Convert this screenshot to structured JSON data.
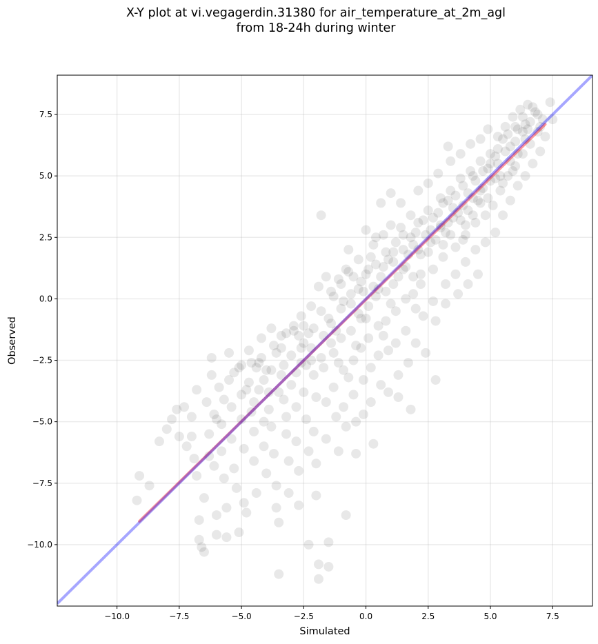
{
  "title_lines": [
    "X-Y plot at vi.vegagerdin.31380 for air_temperature_at_2m_agl",
    "from 18-24h during winter"
  ],
  "chart_data": {
    "type": "scatter",
    "title": "X-Y plot at vi.vegagerdin.31380 for air_temperature_at_2m_agl from 18-24h during winter",
    "xlabel": "Simulated",
    "ylabel": "Observed",
    "xlim": [
      -12.4,
      9.1
    ],
    "ylim": [
      -12.5,
      9.1
    ],
    "xticks": [
      -10.0,
      -7.5,
      -5.0,
      -2.5,
      0.0,
      2.5,
      5.0,
      7.5
    ],
    "yticks": [
      -10.0,
      -7.5,
      -5.0,
      -2.5,
      0.0,
      2.5,
      5.0,
      7.5
    ],
    "xtick_labels": [
      "−10.0",
      "−7.5",
      "−5.0",
      "−2.5",
      "0.0",
      "2.5",
      "5.0",
      "7.5"
    ],
    "ytick_labels": [
      "−10.0",
      "−7.5",
      "−5.0",
      "−2.5",
      "0.0",
      "2.5",
      "5.0",
      "7.5"
    ],
    "grid": true,
    "point_color": "#000000",
    "point_alpha": 0.09,
    "identity_line": {
      "x": [
        -12.4,
        9.1
      ],
      "y": [
        -12.4,
        9.1
      ],
      "color": "#0000ff",
      "alpha": 0.35
    },
    "fit_line": {
      "x": [
        -9.1,
        7.2
      ],
      "y": [
        -9.05,
        7.1
      ],
      "color": "#ff0000",
      "alpha": 0.4
    },
    "points": [
      [
        -9.1,
        -7.2
      ],
      [
        -9.2,
        -8.2
      ],
      [
        -8.7,
        -7.6
      ],
      [
        -8.3,
        -5.8
      ],
      [
        -8.0,
        -5.3
      ],
      [
        -7.8,
        -4.9
      ],
      [
        -7.6,
        -4.5
      ],
      [
        -7.5,
        -5.6
      ],
      [
        -7.3,
        -4.4
      ],
      [
        -7.2,
        -6.0
      ],
      [
        -7.0,
        -4.8
      ],
      [
        -7.0,
        -5.6
      ],
      [
        -6.9,
        -6.5
      ],
      [
        -6.8,
        -3.7
      ],
      [
        -6.8,
        -7.2
      ],
      [
        -6.7,
        -9.0
      ],
      [
        -6.7,
        -9.8
      ],
      [
        -6.6,
        -10.1
      ],
      [
        -6.5,
        -10.3
      ],
      [
        -6.5,
        -8.1
      ],
      [
        -6.4,
        -4.2
      ],
      [
        -6.3,
        -5.5
      ],
      [
        -6.3,
        -6.4
      ],
      [
        -6.2,
        -2.4
      ],
      [
        -6.2,
        -3.1
      ],
      [
        -6.1,
        -4.7
      ],
      [
        -6.1,
        -6.8
      ],
      [
        -6.0,
        -8.8
      ],
      [
        -6.0,
        -9.6
      ],
      [
        -5.9,
        -3.6
      ],
      [
        -5.8,
        -5.1
      ],
      [
        -5.8,
        -6.2
      ],
      [
        -5.7,
        -7.3
      ],
      [
        -5.6,
        -8.5
      ],
      [
        -5.6,
        -9.7
      ],
      [
        -5.5,
        -2.2
      ],
      [
        -5.5,
        -3.3
      ],
      [
        -5.4,
        -4.4
      ],
      [
        -5.4,
        -5.7
      ],
      [
        -5.3,
        -6.9
      ],
      [
        -5.2,
        -7.7
      ],
      [
        -5.1,
        -9.5
      ],
      [
        -5.1,
        -2.8
      ],
      [
        -5.0,
        -3.9
      ],
      [
        -5.0,
        -4.9
      ],
      [
        -4.9,
        -6.1
      ],
      [
        -4.9,
        -8.3
      ],
      [
        -4.8,
        -8.7
      ],
      [
        -4.7,
        -2.1
      ],
      [
        -4.7,
        -3.4
      ],
      [
        -4.6,
        -4.6
      ],
      [
        -4.5,
        -5.4
      ],
      [
        -4.5,
        -6.6
      ],
      [
        -4.4,
        -7.9
      ],
      [
        -4.3,
        -2.6
      ],
      [
        -4.3,
        -3.7
      ],
      [
        -4.2,
        -1.6
      ],
      [
        -4.1,
        -5.0
      ],
      [
        -4.1,
        -6.0
      ],
      [
        -4.0,
        -7.1
      ],
      [
        -4.0,
        -2.9
      ],
      [
        -3.9,
        -3.8
      ],
      [
        -3.8,
        -1.2
      ],
      [
        -3.8,
        -5.2
      ],
      [
        -3.7,
        -6.3
      ],
      [
        -3.6,
        -7.6
      ],
      [
        -3.6,
        -8.5
      ],
      [
        -3.5,
        -9.1
      ],
      [
        -3.5,
        -11.2
      ],
      [
        -3.4,
        -2.0
      ],
      [
        -3.4,
        -3.1
      ],
      [
        -3.3,
        -4.1
      ],
      [
        -3.2,
        -1.4
      ],
      [
        -3.2,
        -5.5
      ],
      [
        -3.1,
        -6.6
      ],
      [
        -3.1,
        -7.9
      ],
      [
        -3.0,
        -2.3
      ],
      [
        -3.0,
        -3.5
      ],
      [
        -2.9,
        -1.1
      ],
      [
        -2.8,
        -4.4
      ],
      [
        -2.8,
        -5.8
      ],
      [
        -2.7,
        -7.0
      ],
      [
        -2.7,
        -8.4
      ],
      [
        -2.6,
        -0.7
      ],
      [
        -2.6,
        -2.6
      ],
      [
        -2.5,
        -1.8
      ],
      [
        -2.5,
        -3.8
      ],
      [
        -2.4,
        -4.9
      ],
      [
        -2.3,
        -6.2
      ],
      [
        -2.3,
        -10.0
      ],
      [
        -2.2,
        -0.3
      ],
      [
        -2.2,
        -2.0
      ],
      [
        -2.1,
        -3.1
      ],
      [
        -2.1,
        -5.4
      ],
      [
        -2.0,
        -6.7
      ],
      [
        -2.0,
        -8.0
      ],
      [
        -1.9,
        -10.8
      ],
      [
        -1.9,
        -11.4
      ],
      [
        -1.8,
        3.4
      ],
      [
        -1.8,
        -0.5
      ],
      [
        -1.7,
        -1.5
      ],
      [
        -1.7,
        -2.8
      ],
      [
        -1.6,
        -4.2
      ],
      [
        -1.6,
        -5.7
      ],
      [
        -1.5,
        -9.9
      ],
      [
        -1.5,
        -10.9
      ],
      [
        -1.4,
        0.3
      ],
      [
        -1.4,
        -1.0
      ],
      [
        -1.3,
        -2.2
      ],
      [
        -1.3,
        -3.6
      ],
      [
        -1.2,
        -4.8
      ],
      [
        -1.1,
        -6.2
      ],
      [
        -1.1,
        0.8
      ],
      [
        -1.0,
        -0.4
      ],
      [
        -1.0,
        -1.6
      ],
      [
        -0.9,
        -2.9
      ],
      [
        -0.9,
        -4.4
      ],
      [
        -0.8,
        -5.2
      ],
      [
        -0.8,
        -8.8
      ],
      [
        -0.7,
        2.0
      ],
      [
        -0.7,
        1.1
      ],
      [
        -0.6,
        -0.2
      ],
      [
        -0.6,
        -1.3
      ],
      [
        -0.5,
        -2.5
      ],
      [
        -0.5,
        -3.9
      ],
      [
        -0.4,
        -5.0
      ],
      [
        -0.4,
        -6.3
      ],
      [
        -0.3,
        1.6
      ],
      [
        -0.3,
        0.4
      ],
      [
        -0.2,
        -0.8
      ],
      [
        -0.2,
        -2.0
      ],
      [
        -0.1,
        -3.3
      ],
      [
        -0.1,
        -4.7
      ],
      [
        0.0,
        2.8
      ],
      [
        0.0,
        1.0
      ],
      [
        0.1,
        -0.3
      ],
      [
        0.1,
        -1.6
      ],
      [
        0.2,
        -2.8
      ],
      [
        0.2,
        -4.2
      ],
      [
        0.3,
        -5.9
      ],
      [
        0.3,
        2.2
      ],
      [
        0.4,
        1.4
      ],
      [
        0.4,
        0.1
      ],
      [
        0.5,
        -1.1
      ],
      [
        0.5,
        -2.3
      ],
      [
        0.6,
        -3.5
      ],
      [
        0.6,
        3.9
      ],
      [
        0.7,
        2.6
      ],
      [
        0.7,
        1.3
      ],
      [
        0.8,
        0.3
      ],
      [
        0.8,
        -0.9
      ],
      [
        0.9,
        -2.1
      ],
      [
        0.9,
        -3.8
      ],
      [
        1.0,
        4.3
      ],
      [
        1.0,
        3.0
      ],
      [
        1.1,
        1.9
      ],
      [
        1.1,
        0.6
      ],
      [
        1.2,
        -0.5
      ],
      [
        1.2,
        -1.8
      ],
      [
        1.3,
        -3.1
      ],
      [
        1.3,
        -4.0
      ],
      [
        1.4,
        3.9
      ],
      [
        1.5,
        2.6
      ],
      [
        1.5,
        1.2
      ],
      [
        1.6,
        0.0
      ],
      [
        1.6,
        -1.3
      ],
      [
        1.7,
        -2.6
      ],
      [
        1.8,
        -4.5
      ],
      [
        1.8,
        3.4
      ],
      [
        1.9,
        2.2
      ],
      [
        1.9,
        0.9
      ],
      [
        2.0,
        -0.4
      ],
      [
        2.0,
        -1.8
      ],
      [
        2.1,
        4.4
      ],
      [
        2.1,
        3.1
      ],
      [
        2.2,
        1.8
      ],
      [
        2.2,
        0.6
      ],
      [
        2.3,
        -0.7
      ],
      [
        2.4,
        -2.2
      ],
      [
        2.5,
        4.7
      ],
      [
        2.5,
        3.6
      ],
      [
        2.6,
        2.3
      ],
      [
        2.7,
        1.2
      ],
      [
        2.7,
        -0.1
      ],
      [
        2.8,
        -0.9
      ],
      [
        2.8,
        -3.3
      ],
      [
        2.9,
        5.1
      ],
      [
        3.0,
        4.1
      ],
      [
        3.0,
        2.9
      ],
      [
        3.1,
        1.7
      ],
      [
        3.2,
        0.6
      ],
      [
        3.2,
        -0.2
      ],
      [
        3.3,
        6.2
      ],
      [
        3.4,
        5.6
      ],
      [
        3.4,
        4.4
      ],
      [
        3.5,
        3.3
      ],
      [
        3.6,
        2.1
      ],
      [
        3.6,
        1.0
      ],
      [
        3.7,
        0.2
      ],
      [
        3.8,
        5.9
      ],
      [
        3.8,
        4.9
      ],
      [
        3.9,
        3.8
      ],
      [
        4.0,
        2.6
      ],
      [
        4.0,
        1.5
      ],
      [
        4.1,
        0.6
      ],
      [
        4.2,
        6.3
      ],
      [
        4.2,
        5.2
      ],
      [
        4.3,
        4.1
      ],
      [
        4.4,
        3.1
      ],
      [
        4.4,
        2.0
      ],
      [
        4.5,
        1.0
      ],
      [
        4.6,
        6.5
      ],
      [
        4.6,
        5.6
      ],
      [
        4.7,
        4.5
      ],
      [
        4.8,
        3.4
      ],
      [
        4.8,
        2.3
      ],
      [
        4.9,
        6.9
      ],
      [
        5.0,
        5.9
      ],
      [
        5.0,
        4.8
      ],
      [
        5.1,
        3.8
      ],
      [
        5.2,
        2.7
      ],
      [
        5.3,
        6.6
      ],
      [
        5.3,
        5.5
      ],
      [
        5.4,
        4.4
      ],
      [
        5.5,
        3.4
      ],
      [
        5.6,
        7.0
      ],
      [
        5.6,
        6.0
      ],
      [
        5.7,
        5.0
      ],
      [
        5.8,
        4.0
      ],
      [
        5.9,
        7.4
      ],
      [
        6.0,
        6.4
      ],
      [
        6.0,
        5.4
      ],
      [
        6.1,
        4.6
      ],
      [
        6.2,
        7.7
      ],
      [
        6.3,
        6.8
      ],
      [
        6.3,
        5.9
      ],
      [
        6.4,
        5.0
      ],
      [
        6.5,
        7.9
      ],
      [
        6.6,
        7.2
      ],
      [
        6.6,
        6.3
      ],
      [
        6.7,
        5.5
      ],
      [
        6.8,
        7.6
      ],
      [
        6.9,
        6.8
      ],
      [
        7.0,
        6.0
      ],
      [
        7.1,
        7.3
      ],
      [
        7.2,
        6.6
      ],
      [
        7.4,
        8.0
      ],
      [
        7.5,
        7.3
      ],
      [
        -2.9,
        -1.3
      ],
      [
        -2.7,
        -1.5
      ],
      [
        -2.5,
        -1.1
      ],
      [
        -2.3,
        -1.4
      ],
      [
        -2.1,
        -1.2
      ],
      [
        -4.6,
        -2.6
      ],
      [
        -4.4,
        -2.8
      ],
      [
        -4.2,
        -2.4
      ],
      [
        -3.7,
        -1.9
      ],
      [
        -3.4,
        -1.5
      ],
      [
        -1.9,
        0.5
      ],
      [
        -1.6,
        0.9
      ],
      [
        -1.3,
        0.1
      ],
      [
        -1.0,
        0.6
      ],
      [
        -0.8,
        1.2
      ],
      [
        -0.5,
        0.9
      ],
      [
        -0.3,
        -0.6
      ],
      [
        -0.1,
        0.3
      ],
      [
        0.2,
        1.7
      ],
      [
        0.4,
        2.5
      ],
      [
        0.6,
        0.9
      ],
      [
        0.9,
        1.6
      ],
      [
        1.2,
        2.3
      ],
      [
        1.4,
        2.9
      ],
      [
        1.7,
        1.8
      ],
      [
        2.0,
        2.7
      ],
      [
        2.3,
        3.2
      ],
      [
        2.6,
        2.8
      ],
      [
        2.9,
        3.5
      ],
      [
        3.1,
        3.9
      ],
      [
        3.3,
        3.1
      ],
      [
        3.6,
        4.2
      ],
      [
        3.9,
        4.6
      ],
      [
        4.1,
        3.6
      ],
      [
        4.3,
        5.0
      ],
      [
        4.6,
        4.4
      ],
      [
        4.9,
        5.3
      ],
      [
        5.2,
        5.8
      ],
      [
        5.5,
        6.5
      ],
      [
        5.8,
        6.2
      ],
      [
        6.1,
        6.9
      ],
      [
        6.4,
        7.1
      ],
      [
        -6.0,
        -4.9
      ],
      [
        -5.7,
        -4.1
      ],
      [
        -5.3,
        -3.0
      ],
      [
        -5.0,
        -2.7
      ],
      [
        -4.8,
        -3.7
      ],
      [
        -4.5,
        -4.2
      ],
      [
        -4.1,
        -3.3
      ],
      [
        -3.9,
        -4.5
      ],
      [
        -3.5,
        -3.8
      ],
      [
        -3.2,
        -4.8
      ],
      [
        -2.8,
        -3.0
      ],
      [
        -2.4,
        -2.7
      ],
      [
        -2.0,
        -4.0
      ],
      [
        -1.8,
        -2.4
      ],
      [
        -1.4,
        -1.8
      ],
      [
        -1.1,
        -2.6
      ],
      [
        -0.7,
        -3.2
      ],
      [
        -0.4,
        -1.9
      ],
      [
        0.0,
        -0.8
      ],
      [
        0.3,
        0.5
      ],
      [
        0.7,
        -1.5
      ],
      [
        1.0,
        -0.2
      ],
      [
        1.3,
        0.9
      ],
      [
        1.6,
        1.3
      ],
      [
        1.9,
        0.2
      ],
      [
        2.2,
        1.0
      ],
      [
        2.5,
        1.9
      ],
      [
        2.8,
        2.4
      ],
      [
        3.1,
        2.2
      ],
      [
        3.4,
        2.6
      ],
      [
        3.7,
        3.5
      ],
      [
        4.0,
        3.0
      ],
      [
        4.3,
        3.4
      ],
      [
        4.6,
        3.9
      ],
      [
        4.9,
        4.1
      ],
      [
        5.2,
        4.9
      ],
      [
        5.5,
        4.7
      ],
      [
        5.8,
        5.6
      ],
      [
        6.1,
        5.9
      ],
      [
        6.4,
        6.5
      ],
      [
        -3.8,
        -2.9
      ],
      [
        -3.6,
        -2.2
      ],
      [
        -3.3,
        -2.7
      ],
      [
        -2.6,
        -2.0
      ],
      [
        -2.2,
        -2.5
      ],
      [
        -1.5,
        -0.8
      ],
      [
        -1.2,
        -1.3
      ],
      [
        -0.9,
        -0.1
      ],
      [
        -0.6,
        0.2
      ],
      [
        -0.2,
        0.7
      ],
      [
        0.1,
        1.2
      ],
      [
        0.5,
        0.4
      ],
      [
        0.8,
        1.9
      ],
      [
        1.1,
        1.5
      ],
      [
        1.5,
        2.0
      ],
      [
        1.8,
        2.5
      ],
      [
        2.1,
        2.0
      ],
      [
        2.4,
        2.6
      ],
      [
        2.7,
        3.3
      ],
      [
        3.0,
        3.0
      ],
      [
        3.3,
        4.0
      ],
      [
        3.5,
        3.7
      ],
      [
        3.8,
        3.2
      ],
      [
        4.1,
        4.3
      ],
      [
        4.4,
        4.8
      ],
      [
        4.7,
        5.2
      ],
      [
        5.0,
        5.5
      ],
      [
        5.3,
        6.1
      ],
      [
        5.7,
        6.7
      ],
      [
        6.0,
        7.0
      ],
      [
        6.3,
        7.4
      ],
      [
        6.7,
        7.8
      ],
      [
        7.0,
        7.0
      ],
      [
        6.9,
        7.5
      ],
      [
        6.5,
        6.9
      ],
      [
        5.9,
        5.2
      ],
      [
        5.4,
        5.0
      ],
      [
        4.5,
        4.0
      ],
      [
        3.9,
        2.4
      ],
      [
        3.2,
        2.7
      ]
    ]
  }
}
